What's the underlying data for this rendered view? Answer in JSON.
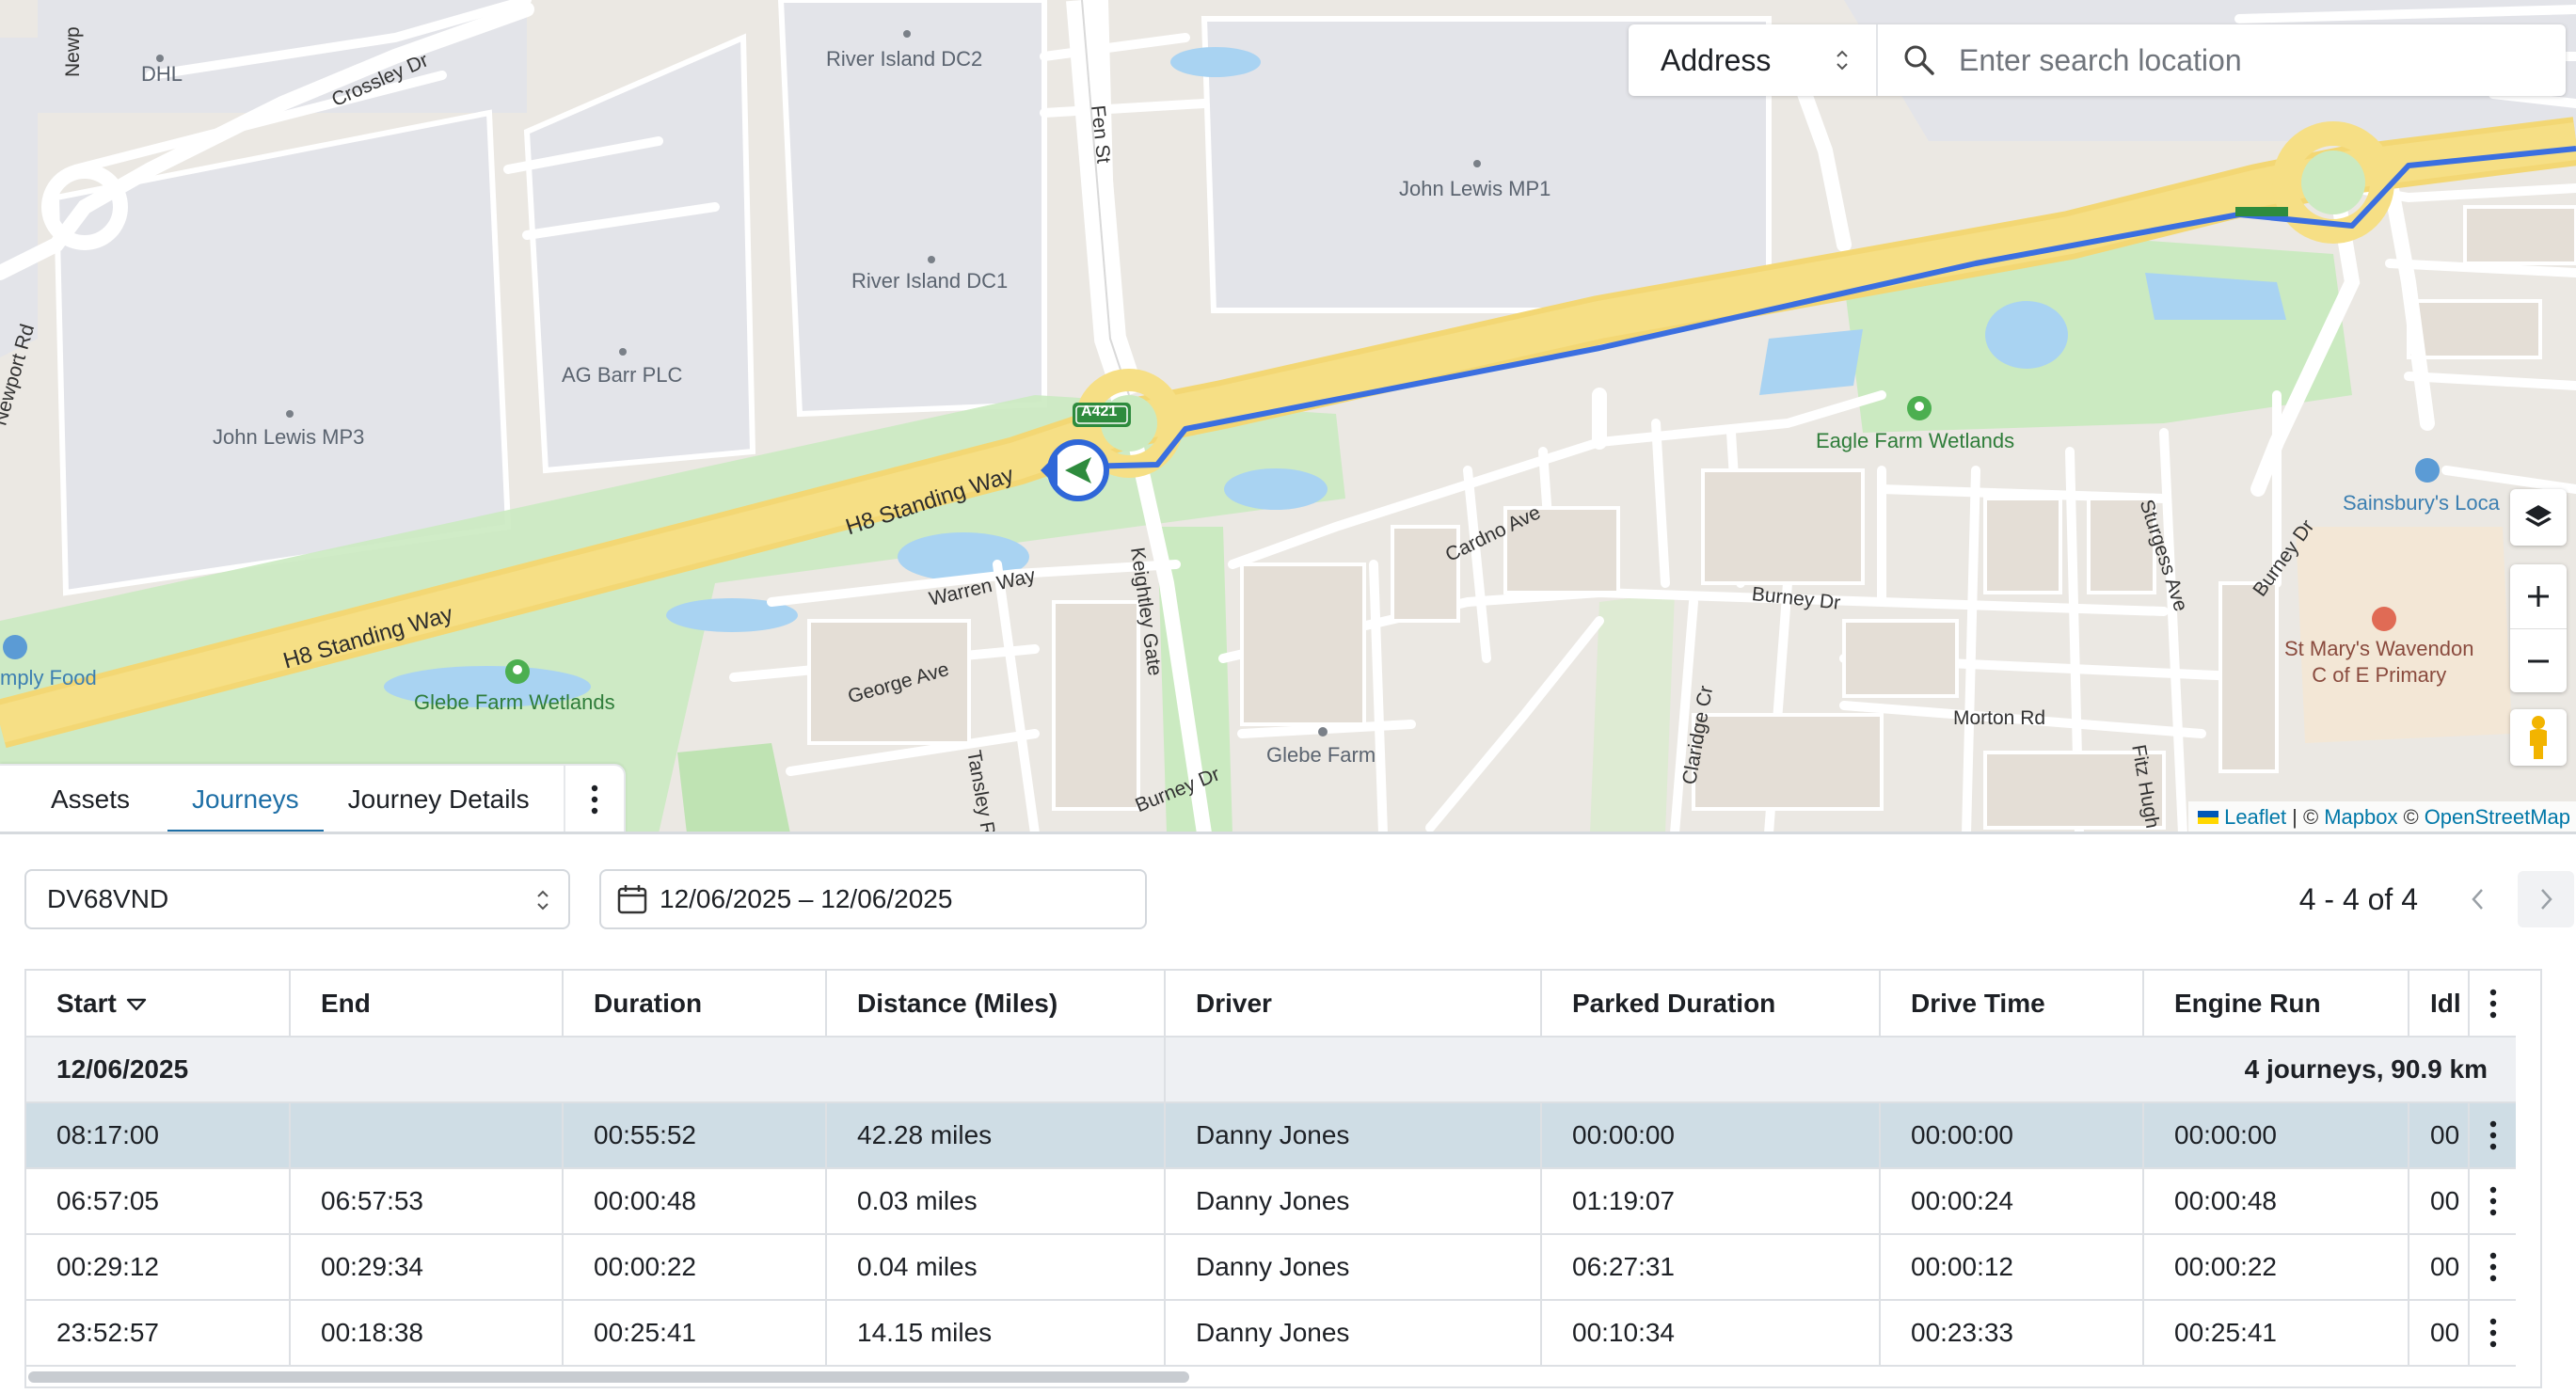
{
  "map": {
    "search": {
      "mode_label": "Address",
      "placeholder": "Enter search location"
    },
    "labels": {
      "dhl": "DHL",
      "crossley_dr": "Crossley Dr",
      "newport_rd": "Newport Rd",
      "newp": "Newp",
      "river_island_dc2": "River Island DC2",
      "river_island_dc1": "River Island DC1",
      "fen_st": "Fen St",
      "john_lewis_mp1": "John Lewis MP1",
      "ag_barr": "AG Barr PLC",
      "john_lewis_mp3": "John Lewis MP3",
      "a421": "A421",
      "h8_standing_way_1": "H8 Standing Way",
      "h8_standing_way_2": "H8 Standing Way",
      "warren_way": "Warren Way",
      "keightley_gate": "Keightley Gate",
      "eagle_farm_wetlands": "Eagle Farm Wetlands",
      "cardno_ave": "Cardno Ave",
      "burney_dr_1": "Burney Dr",
      "burney_dr_2": "Burney Dr",
      "burney_dr_3": "Burney Dr",
      "sturgess_ave": "Sturgess Ave",
      "sainsburys": "Sainsbury's Loca",
      "st_marys": "St Mary's Wavendon\nC of E Primary",
      "glebe_farm_wetlands": "Glebe Farm Wetlands",
      "george_ave": "George Ave",
      "tansley_rd": "Tansley Rd",
      "glebe_farm": "Glebe Farm",
      "claridge_cr": "Claridge Cr",
      "morton_rd": "Morton Rd",
      "fitz_hugh_cr": "Fitz Hugh Cr",
      "simply_food": "mply Food"
    },
    "attribution": {
      "leaflet": "Leaflet",
      "sep1": "| ©",
      "mapbox": "Mapbox",
      "sep2": "©",
      "osm": "OpenStreetMap"
    },
    "colors": {
      "route": "#3b6fe0",
      "major_road": "#f6df85",
      "park": "#cbeac1",
      "water": "#a9d3f2",
      "industrial": "#e3e4e9"
    }
  },
  "tabs": [
    {
      "label": "Assets",
      "active": false
    },
    {
      "label": "Journeys",
      "active": true
    },
    {
      "label": "Journey Details",
      "active": false
    }
  ],
  "filters": {
    "vehicle": "DV68VND",
    "date_range": "12/06/2025 – 12/06/2025"
  },
  "pager": {
    "count_text": "4 - 4 of 4"
  },
  "table": {
    "columns": [
      "Start",
      "End",
      "Duration",
      "Distance (Miles)",
      "Driver",
      "Parked Duration",
      "Drive Time",
      "Engine Run",
      "Idl"
    ],
    "group": {
      "date": "12/06/2025",
      "summary": "4 journeys, 90.9 km"
    },
    "rows": [
      [
        "08:17:00",
        "",
        "00:55:52",
        "42.28 miles",
        "Danny Jones",
        "00:00:00",
        "00:00:00",
        "00:00:00",
        "00"
      ],
      [
        "06:57:05",
        "06:57:53",
        "00:00:48",
        "0.03 miles",
        "Danny Jones",
        "01:19:07",
        "00:00:24",
        "00:00:48",
        "00"
      ],
      [
        "00:29:12",
        "00:29:34",
        "00:00:22",
        "0.04 miles",
        "Danny Jones",
        "06:27:31",
        "00:00:12",
        "00:00:22",
        "00"
      ],
      [
        "23:52:57",
        "00:18:38",
        "00:25:41",
        "14.15 miles",
        "Danny Jones",
        "00:10:34",
        "00:23:33",
        "00:25:41",
        "00"
      ]
    ]
  }
}
